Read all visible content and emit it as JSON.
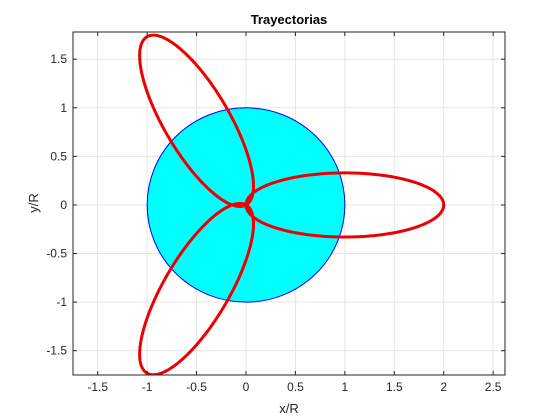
{
  "chart_data": {
    "type": "line",
    "title": "Trayectorias",
    "xlabel": "x/R",
    "ylabel": "y/R",
    "xlim": [
      -1.75,
      2.62
    ],
    "ylim": [
      -1.75,
      1.78
    ],
    "x_ticks": [
      -1.5,
      -1,
      -0.5,
      0,
      0.5,
      1,
      1.5,
      2,
      2.5
    ],
    "y_ticks": [
      -1.5,
      -1,
      -0.5,
      0,
      0.5,
      1,
      1.5
    ],
    "x_tick_labels": [
      "-1.5",
      "-1",
      "-0.5",
      "0",
      "0.5",
      "1",
      "1.5",
      "2",
      "2.5"
    ],
    "y_tick_labels": [
      "-1.5",
      "-1",
      "-0.5",
      "0",
      "0.5",
      "1",
      "1.5"
    ],
    "grid": true,
    "box": true,
    "planet": {
      "shape": "circle",
      "center": [
        0,
        0
      ],
      "radius": 1,
      "fill": "#00ffff",
      "edge": "#0000ff"
    },
    "series": [
      {
        "shape": "ellipse",
        "focus": [
          0,
          0
        ],
        "center": [
          1,
          0
        ],
        "semi_major": 1,
        "semi_minor": 0.33,
        "rotation_deg": 0,
        "color": "#ee0000"
      },
      {
        "shape": "ellipse",
        "focus": [
          0,
          0
        ],
        "center": [
          -0.5,
          0.866
        ],
        "semi_major": 1,
        "semi_minor": 0.33,
        "rotation_deg": 120,
        "color": "#ee0000"
      },
      {
        "shape": "ellipse",
        "focus": [
          0,
          0
        ],
        "center": [
          -0.5,
          -0.866
        ],
        "semi_major": 1,
        "semi_minor": 0.33,
        "rotation_deg": 240,
        "color": "#ee0000"
      }
    ],
    "colors": {
      "grid": "#e5e5e5",
      "axes": "#262626",
      "text": "#262626",
      "background": "#ffffff"
    }
  }
}
